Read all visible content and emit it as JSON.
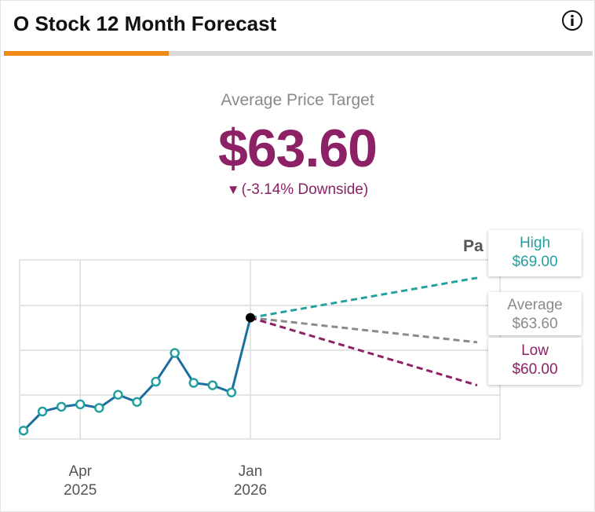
{
  "header": {
    "title": "O Stock 12 Month Forecast",
    "info_icon": "info-icon",
    "progress_fraction": 0.28
  },
  "summary": {
    "label": "Average Price Target",
    "value": "$63.60",
    "change_arrow": "▼",
    "change_text": "(-3.14% Downside)"
  },
  "colors": {
    "past": "#1a6fa0",
    "past_marker": "#23a09e",
    "high": "#23a09e",
    "average": "#8a8a8a",
    "low": "#8c2165",
    "accent": "#ee8a14"
  },
  "chart_data": {
    "type": "line",
    "past_label": "Pa",
    "x_ticks": [
      {
        "month": "Apr",
        "year": "2025",
        "index": 3
      },
      {
        "month": "Jan",
        "year": "2026",
        "index": 12
      }
    ],
    "history": {
      "values": [
        56.2,
        57.8,
        58.2,
        58.4,
        58.1,
        59.2,
        58.6,
        60.3,
        62.7,
        60.2,
        60.0,
        59.4,
        65.66
      ]
    },
    "ylim": [
      55.5,
      70.5
    ],
    "forecast": {
      "index_end": 24,
      "high": {
        "label": "High",
        "value_text": "$69.00",
        "value": 69.0
      },
      "average": {
        "label": "Average",
        "value_text": "$63.60",
        "value": 63.6
      },
      "low": {
        "label": "Low",
        "value_text": "$60.00",
        "value": 60.0
      }
    }
  }
}
